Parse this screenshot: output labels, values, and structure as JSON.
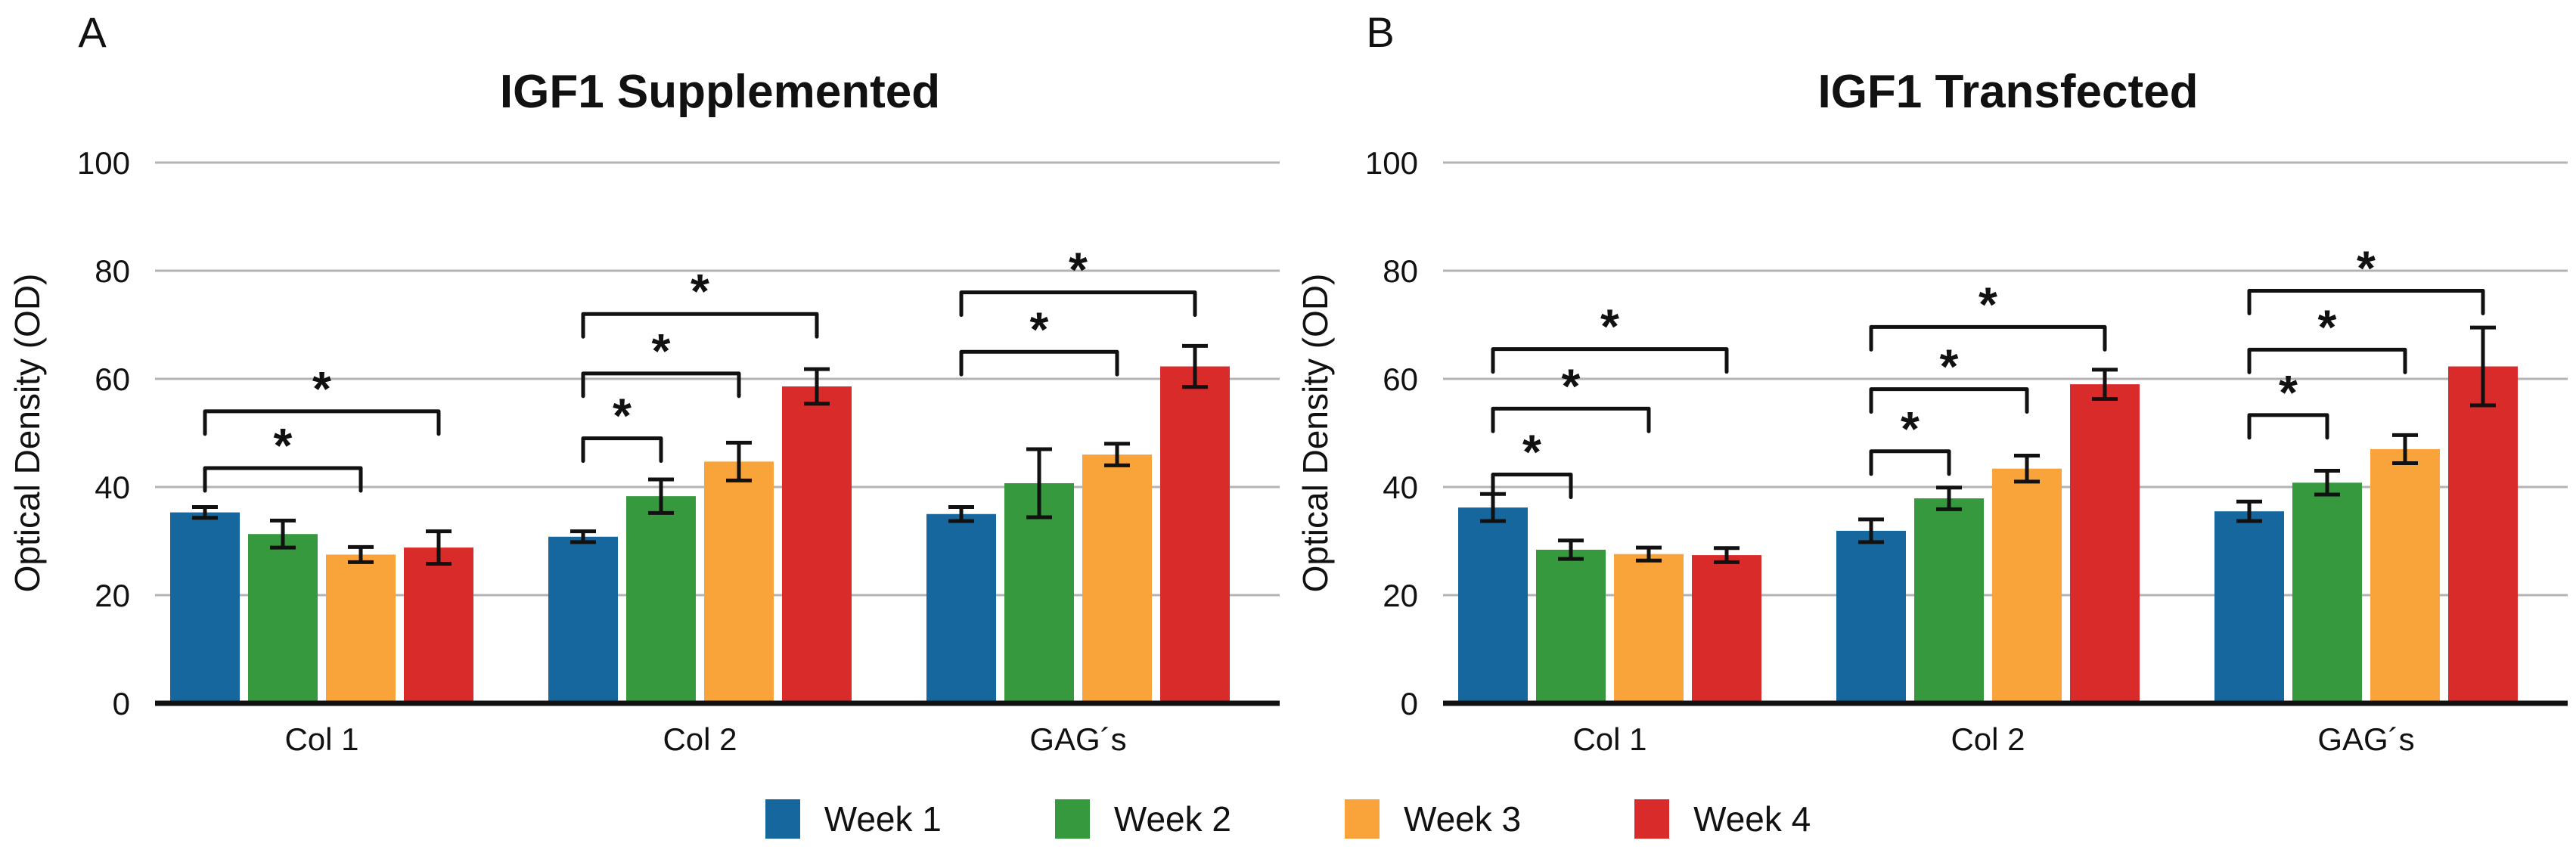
{
  "figure": {
    "background": "#ffffff"
  },
  "legend": {
    "items": [
      {
        "label": "Week 1",
        "color": "#15679E"
      },
      {
        "label": "Week 2",
        "color": "#37993E"
      },
      {
        "label": "Week 3",
        "color": "#F9A43B"
      },
      {
        "label": "Week 4",
        "color": "#D92B2A"
      }
    ]
  },
  "chart_data": [
    {
      "type": "bar",
      "panel_label": "A",
      "title": "IGF1 Supplemented",
      "xlabel": "",
      "ylabel": "Optical Density (OD)",
      "ylim": [
        0,
        100
      ],
      "yticks": [
        0,
        20,
        40,
        60,
        80,
        100
      ],
      "grid": true,
      "grid_color": "#b3b3b3",
      "axis_color": "#111111",
      "legend_position": "bottom-shared",
      "categories": [
        "Col 1",
        "Col 2",
        "GAG´s"
      ],
      "series": [
        {
          "name": "Week 1",
          "color": "#15679E",
          "values": [
            35.3,
            30.8,
            35.0
          ],
          "errors": [
            1.0,
            1.0,
            1.3
          ]
        },
        {
          "name": "Week 2",
          "color": "#37993E",
          "values": [
            31.3,
            38.3,
            40.7
          ],
          "errors": [
            2.5,
            3.1,
            6.3
          ]
        },
        {
          "name": "Week 3",
          "color": "#F9A43B",
          "values": [
            27.5,
            44.7,
            46.0
          ],
          "errors": [
            1.4,
            3.5,
            2.0
          ]
        },
        {
          "name": "Week 4",
          "color": "#D92B2A",
          "values": [
            28.8,
            58.6,
            62.3
          ],
          "errors": [
            3.0,
            3.2,
            3.8
          ]
        }
      ],
      "significance": [
        {
          "category": 0,
          "from": 0,
          "to": 2,
          "y": 43.5,
          "label": "*"
        },
        {
          "category": 0,
          "from": 0,
          "to": 3,
          "y": 54.0,
          "label": "*"
        },
        {
          "category": 1,
          "from": 0,
          "to": 1,
          "y": 49.0,
          "label": "*"
        },
        {
          "category": 1,
          "from": 0,
          "to": 2,
          "y": 61.0,
          "label": "*"
        },
        {
          "category": 1,
          "from": 0,
          "to": 3,
          "y": 72.0,
          "label": "*"
        },
        {
          "category": 2,
          "from": 0,
          "to": 2,
          "y": 65.0,
          "label": "*"
        },
        {
          "category": 2,
          "from": 0,
          "to": 3,
          "y": 76.0,
          "label": "*"
        }
      ]
    },
    {
      "type": "bar",
      "panel_label": "B",
      "title": "IGF1 Transfected",
      "xlabel": "",
      "ylabel": "Optical Density (OD)",
      "ylim": [
        0,
        100
      ],
      "yticks": [
        0,
        20,
        40,
        60,
        80,
        100
      ],
      "grid": true,
      "grid_color": "#b3b3b3",
      "axis_color": "#111111",
      "legend_position": "bottom-shared",
      "categories": [
        "Col 1",
        "Col 2",
        "GAG´s"
      ],
      "series": [
        {
          "name": "Week 1",
          "color": "#15679E",
          "values": [
            36.2,
            31.9,
            35.5
          ],
          "errors": [
            2.5,
            2.1,
            1.8
          ]
        },
        {
          "name": "Week 2",
          "color": "#37993E",
          "values": [
            28.4,
            37.9,
            40.8
          ],
          "errors": [
            1.7,
            2.0,
            2.2
          ]
        },
        {
          "name": "Week 3",
          "color": "#F9A43B",
          "values": [
            27.6,
            43.4,
            47.0
          ],
          "errors": [
            1.2,
            2.4,
            2.6
          ]
        },
        {
          "name": "Week 4",
          "color": "#D92B2A",
          "values": [
            27.4,
            59.0,
            62.3
          ],
          "errors": [
            1.3,
            2.7,
            7.2
          ]
        }
      ],
      "significance": [
        {
          "category": 0,
          "from": 0,
          "to": 1,
          "y": 42.3,
          "label": "*"
        },
        {
          "category": 0,
          "from": 0,
          "to": 2,
          "y": 54.5,
          "label": "*"
        },
        {
          "category": 0,
          "from": 0,
          "to": 3,
          "y": 65.5,
          "label": "*"
        },
        {
          "category": 1,
          "from": 0,
          "to": 1,
          "y": 46.6,
          "label": "*"
        },
        {
          "category": 1,
          "from": 0,
          "to": 2,
          "y": 58.1,
          "label": "*"
        },
        {
          "category": 1,
          "from": 0,
          "to": 3,
          "y": 69.6,
          "label": "*"
        },
        {
          "category": 2,
          "from": 0,
          "to": 1,
          "y": 53.3,
          "label": "*"
        },
        {
          "category": 2,
          "from": 0,
          "to": 2,
          "y": 65.4,
          "label": "*"
        },
        {
          "category": 2,
          "from": 0,
          "to": 3,
          "y": 76.3,
          "label": "*"
        }
      ]
    }
  ]
}
